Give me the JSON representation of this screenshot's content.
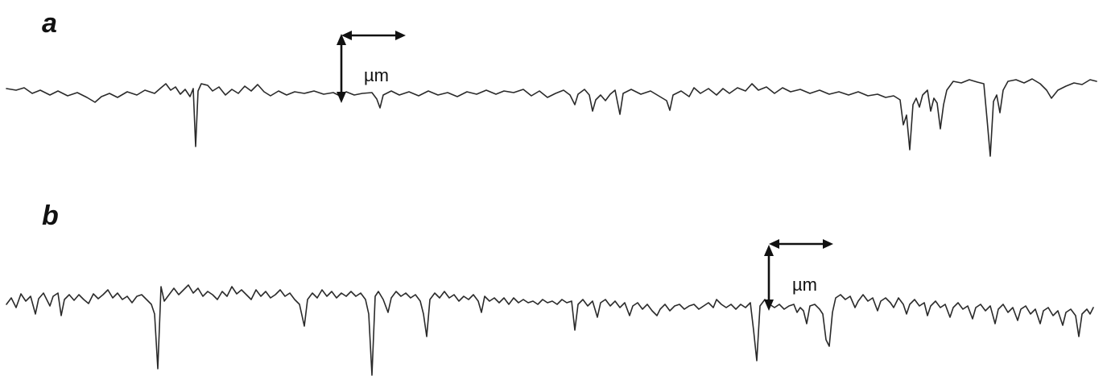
{
  "panels": [
    {
      "label": "a",
      "scale_unit": "µm"
    },
    {
      "label": "b",
      "scale_unit": "µm"
    }
  ],
  "colors": {
    "trace": "#2a2a2a",
    "ink": "#111111",
    "background": "#ffffff"
  }
}
